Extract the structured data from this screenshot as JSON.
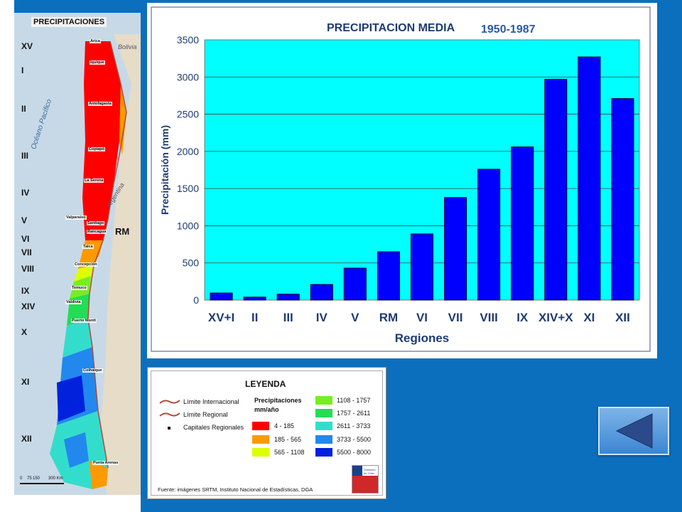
{
  "map": {
    "title": "PRECIPITACIONES",
    "regions": [
      "XV",
      "I",
      "II",
      "III",
      "IV",
      "V",
      "VI",
      "VII",
      "VIII",
      "IX",
      "XIV",
      "X",
      "XI",
      "XII"
    ],
    "rm_label": "RM",
    "cities": [
      "Arica",
      "Iquique",
      "Antofagasta",
      "Copiapó",
      "La Serena",
      "Valparaíso",
      "Santiago",
      "Rancagua",
      "Talca",
      "Concepción",
      "Temuco",
      "Valdivia",
      "Puerto Montt",
      "Coihaique",
      "Punta Arenas"
    ],
    "countries": {
      "bolivia": "Bolivia",
      "argentina": "Argentina"
    },
    "ocean": "Océano Pacífico",
    "scale": {
      "ticks": [
        "0",
        "75",
        "150",
        "300 Km"
      ]
    }
  },
  "chart_data": {
    "type": "bar",
    "title": "PRECIPITACION MEDIA",
    "subtitle": "1950-1987",
    "xlabel": "Regiones",
    "ylabel": "Precipitación (mm)",
    "categories": [
      "XV+I",
      "II",
      "III",
      "IV",
      "V",
      "RM",
      "VI",
      "VII",
      "VIII",
      "IX",
      "XIV+X",
      "XI",
      "XII"
    ],
    "values": [
      95,
      40,
      80,
      210,
      430,
      650,
      890,
      1380,
      1760,
      2060,
      2970,
      3270,
      2710
    ],
    "ylim": [
      0,
      3500
    ],
    "yticks": [
      0,
      500,
      1000,
      1500,
      2000,
      2500,
      3000,
      3500
    ],
    "grid": true,
    "colors": {
      "bar": "#0000ff",
      "plot_bg": "#00ffff",
      "title": "#1f3b73",
      "subtitle": "#2a5aa8",
      "axis_label": "#1f3b73"
    }
  },
  "legend": {
    "title": "LEYENDA",
    "lines": [
      {
        "label": "Límite Internacional",
        "color": "#b04a3a"
      },
      {
        "label": "Límite Regional",
        "color": "#b04a3a"
      },
      {
        "label": "Capitales Regionales",
        "color": "#111111"
      }
    ],
    "precip_title_1": "Precipitaciones",
    "precip_title_2": "mm/año",
    "ranges": [
      {
        "label": "4 - 185",
        "color": "#ff0000"
      },
      {
        "label": "185 - 565",
        "color": "#ff9900"
      },
      {
        "label": "565 - 1108",
        "color": "#ddff00"
      },
      {
        "label": "1108 - 1757",
        "color": "#77ee22"
      },
      {
        "label": "1757 - 2611",
        "color": "#22dd55"
      },
      {
        "label": "2611 - 3733",
        "color": "#33ddcc"
      },
      {
        "label": "3733 - 5500",
        "color": "#2288ee"
      },
      {
        "label": "5500 - 8000",
        "color": "#0022dd"
      }
    ],
    "source": "Fuente: imágenes SRTM, Instituto Nacional de Estadísticas, DGA",
    "logo_text": "Gobierno de Chile"
  }
}
